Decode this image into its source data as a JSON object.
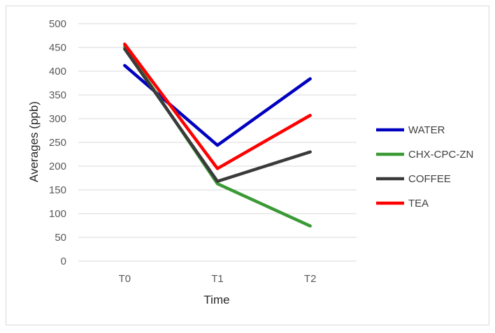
{
  "chart_data": {
    "type": "line",
    "title": "",
    "xlabel": "Time",
    "ylabel": "Averages (ppb)",
    "categories": [
      "T0",
      "T1",
      "T2"
    ],
    "ylim": [
      0,
      500
    ],
    "yticks": [
      0,
      50,
      100,
      150,
      200,
      250,
      300,
      350,
      400,
      450,
      500
    ],
    "grid": "horizontal",
    "legend_position": "right",
    "series": [
      {
        "name": "WATER",
        "color": "#0000c0",
        "values": [
          412,
          244,
          384
        ]
      },
      {
        "name": "CHX-CPC-ZN",
        "color": "#3a9a35",
        "values": [
          452,
          163,
          74
        ]
      },
      {
        "name": "COFFEE",
        "color": "#3a3a3a",
        "values": [
          447,
          168,
          230
        ]
      },
      {
        "name": "TEA",
        "color": "#ff0000",
        "values": [
          457,
          195,
          307
        ]
      }
    ]
  }
}
